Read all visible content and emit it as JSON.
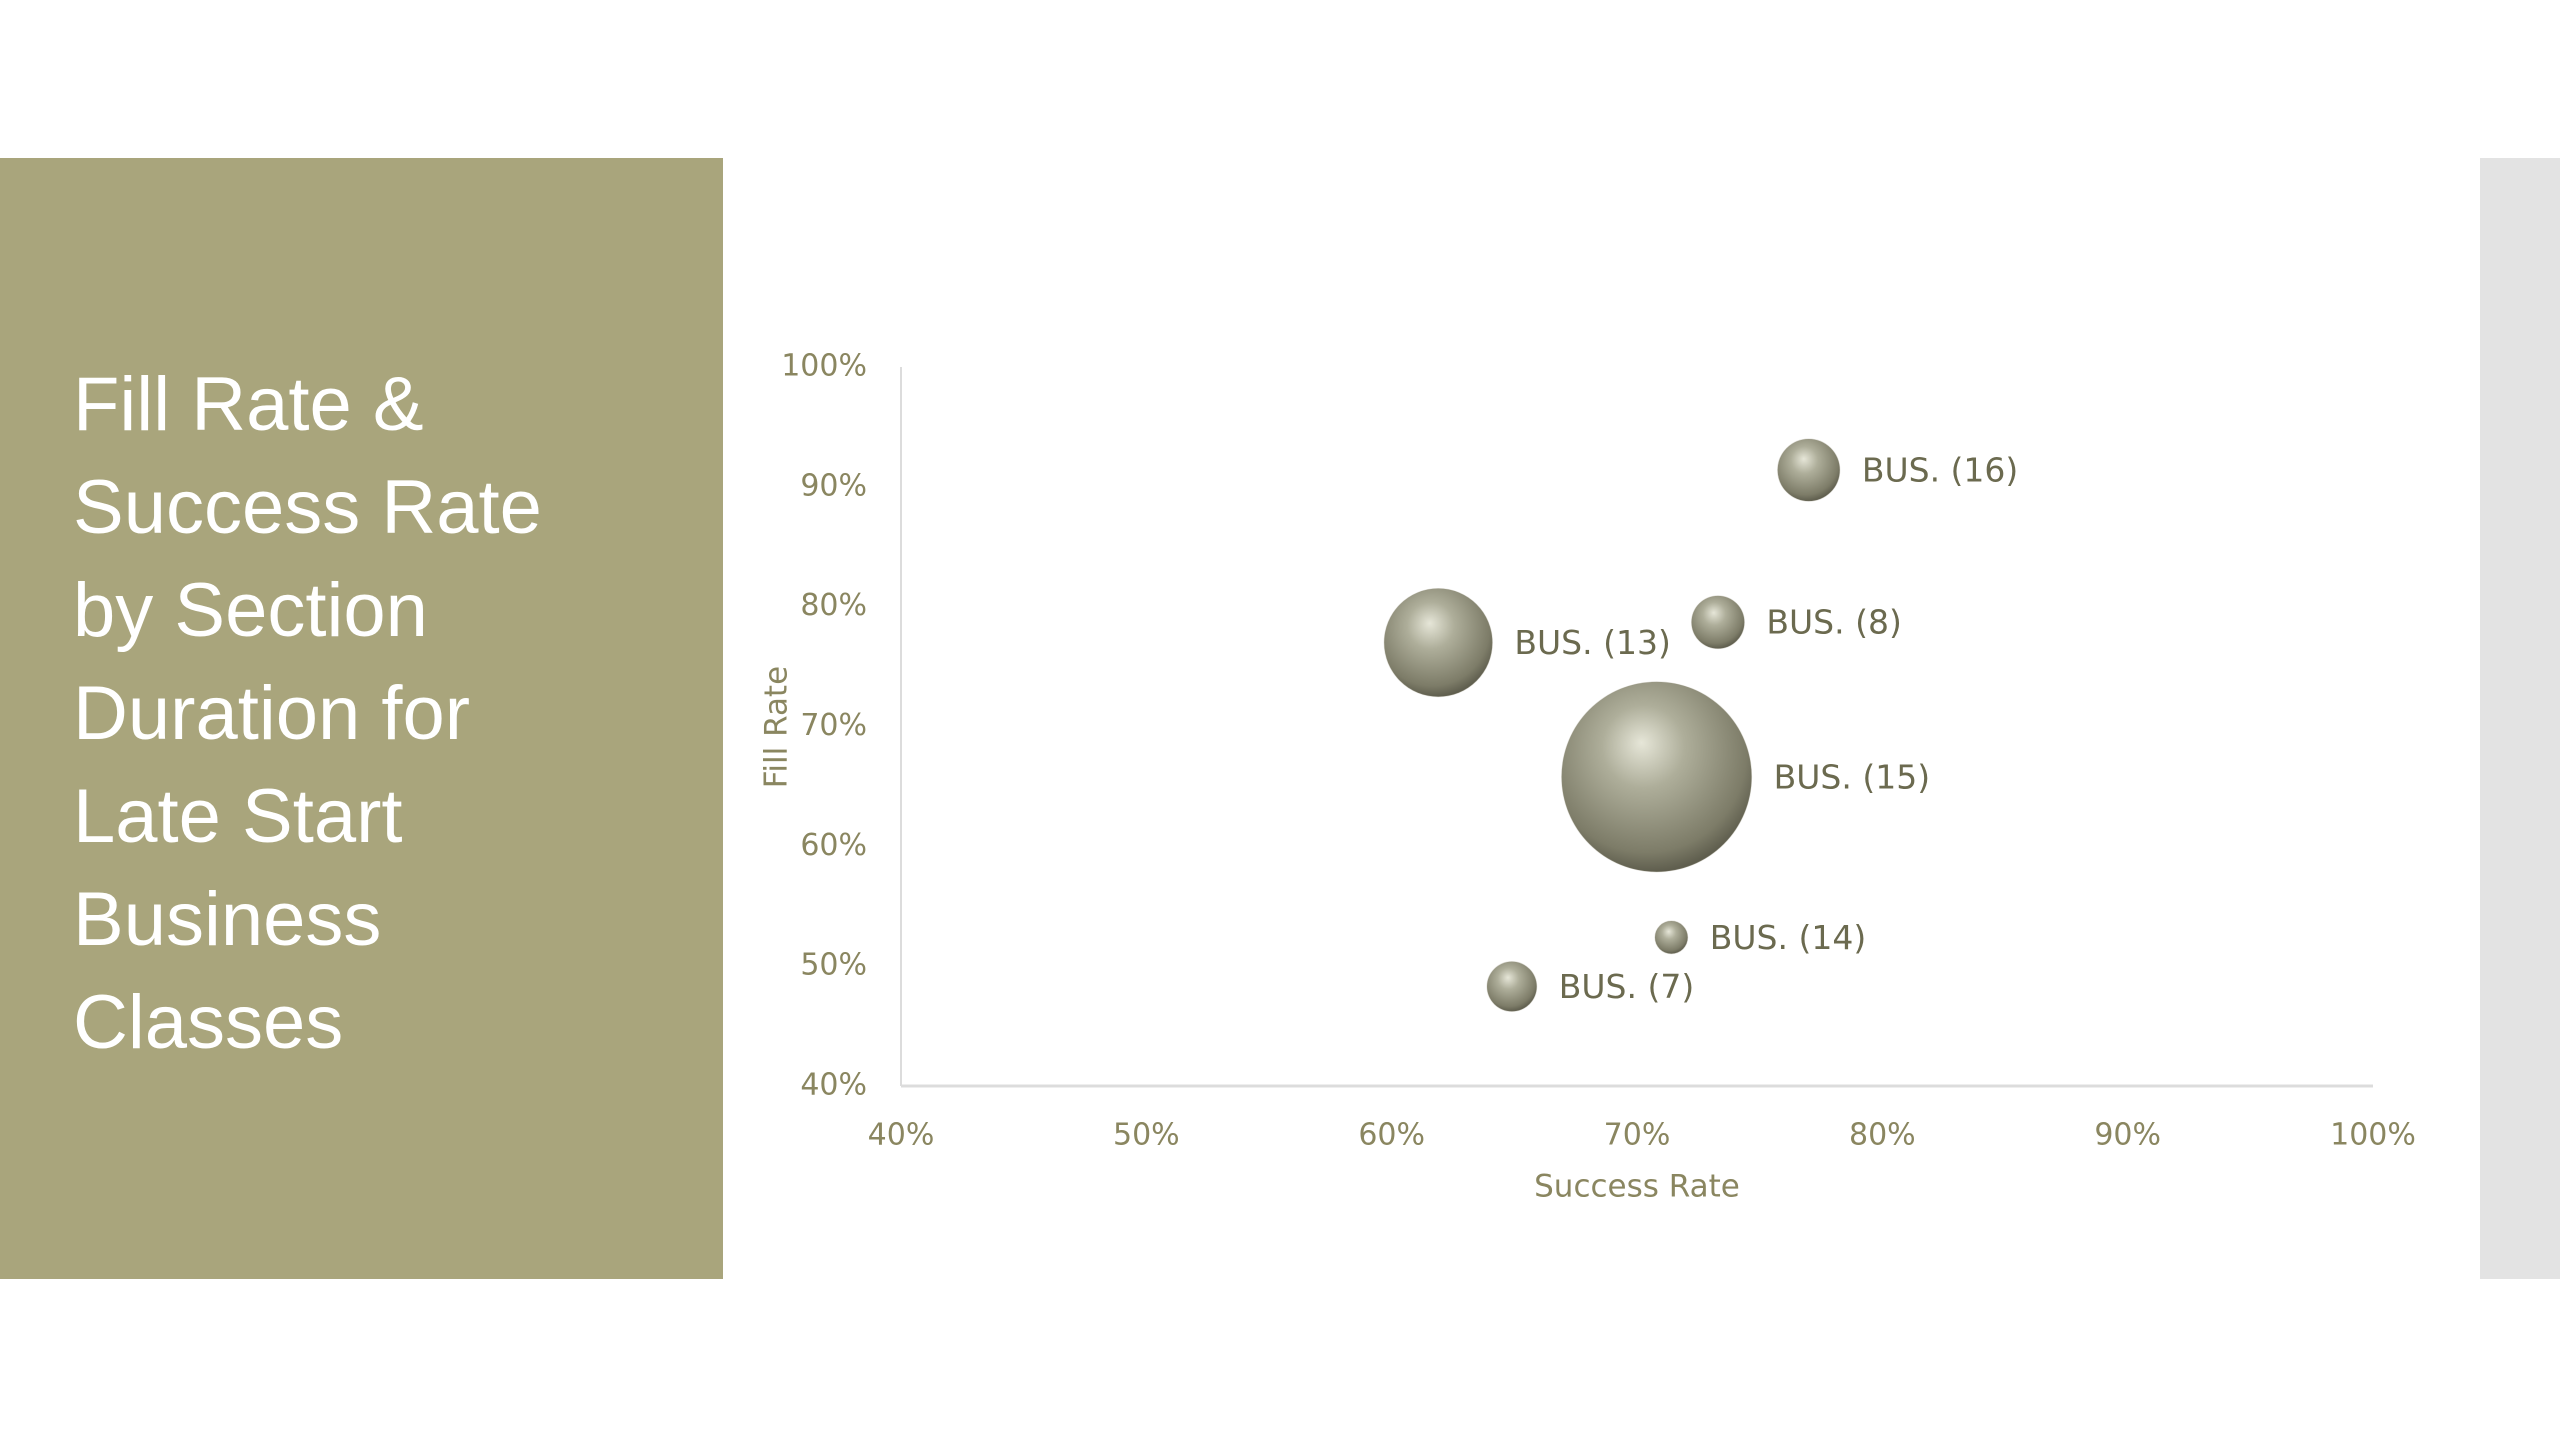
{
  "chart_data": {
    "type": "bubble",
    "title": "Fill Rate & Success Rate by Section Duration for Late Start Business Classes",
    "x_label": "Success Rate",
    "y_label": "Fill Rate",
    "labels": [
      "BUS. (16)",
      "BUS. (8)",
      "BUS. (13)",
      "BUS. (15)",
      "BUS. (14)",
      "BUS. (7)"
    ],
    "x": [
      77.0,
      73.3,
      61.9,
      70.8,
      71.4,
      64.9
    ],
    "values": [
      91.4,
      78.7,
      77.0,
      65.8,
      52.4,
      48.3
    ],
    "sizes": [
      36,
      26,
      109,
      336,
      10,
      23
    ],
    "color": "#9a9985",
    "xlim": [
      40,
      100
    ],
    "ylim": [
      40,
      100
    ],
    "xticks": [
      {
        "value": 40,
        "label": "40%"
      },
      {
        "value": 50,
        "label": "50%"
      },
      {
        "value": 60,
        "label": "60%"
      },
      {
        "value": 70,
        "label": "70%"
      },
      {
        "value": 80,
        "label": "80%"
      },
      {
        "value": 90,
        "label": "90%"
      },
      {
        "value": 100,
        "label": "100%"
      }
    ],
    "yticks": [
      {
        "value": 40,
        "label": "40%"
      },
      {
        "value": 50,
        "label": "50%"
      },
      {
        "value": 60,
        "label": "60%"
      },
      {
        "value": 70,
        "label": "70%"
      },
      {
        "value": 80,
        "label": "80%"
      },
      {
        "value": 90,
        "label": "90%"
      },
      {
        "value": 100,
        "label": "100%"
      }
    ]
  }
}
